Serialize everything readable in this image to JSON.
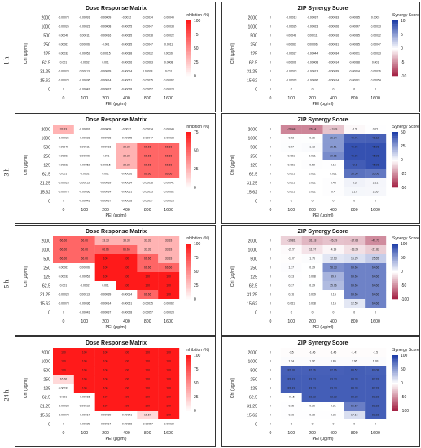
{
  "row_labels": [
    "1 h",
    "3 h",
    "5 h",
    "24 h"
  ],
  "chart_data": [
    {
      "type": "heatmap",
      "title": "Dose Response Matrix",
      "xlabel": "PEI (μg/ml)",
      "ylabel": "Chi (μg/ml)",
      "legend_title": "Inhibition (%)",
      "colorscale": [
        "#ffffff",
        "#ff1a1a"
      ],
      "zlim": [
        0,
        100
      ],
      "legend_ticks": [
        "100",
        "75",
        "50",
        "25",
        "0"
      ],
      "x": [
        "0",
        "100",
        "200",
        "400",
        "800",
        "1600"
      ],
      "y": [
        "2000",
        "1000",
        "500",
        "250",
        "125",
        "62.5",
        "31.25",
        "15.62",
        "0"
      ],
      "values": [
        [
          -0.00073,
          -0.00091,
          -9e-05,
          -0.0012,
          -0.00034,
          -0.00049
        ],
        [
          -0.00026,
          -0.00023,
          -8e-05,
          -0.00075,
          -0.00047,
          -0.00033
        ],
        [
          0.00046,
          0.00011,
          -0.00016,
          -0.00035,
          -0.00038,
          -0.00022
        ],
        [
          0.00061,
          6e-05,
          -0.001,
          -0.00035,
          -0.00047,
          0.0011
        ],
        [
          0.00032,
          -0.00052,
          0.00015,
          -0.00038,
          -0.00022,
          0.00026
        ],
        [
          0.001,
          -0.0002,
          0.001,
          -0.00026,
          -0.00063,
          0.0008
        ],
        [
          -0.00023,
          0.00013,
          -0.00039,
          -0.00014,
          0.00038,
          0.001
        ],
        [
          -0.00078,
          -0.00036,
          -0.00014,
          -0.00051,
          -0.00035,
          -0.00062
        ],
        [
          0,
          -0.00043,
          -0.00037,
          -0.00028,
          -0.00057,
          -0.00028
        ]
      ]
    },
    {
      "type": "heatmap",
      "title": "ZIP Synergy Score",
      "xlabel": "PEI (μg/ml)",
      "ylabel": "Chi (μg/ml)",
      "legend_title": "Synergy Score",
      "colorscale": [
        "#a0183c",
        "#ffffff",
        "#1f3ea8"
      ],
      "zlim": [
        -10,
        10
      ],
      "legend_ticks": [
        "10",
        "5",
        "0",
        "-5",
        "-10"
      ],
      "x": [
        "0",
        "100",
        "200",
        "400",
        "800",
        "1600"
      ],
      "y": [
        "2000",
        "1000",
        "500",
        "250",
        "125",
        "62.5",
        "31.25",
        "15.62",
        "0"
      ],
      "values": [
        [
          0,
          -0.00013,
          -0.00037,
          -0.00033,
          -0.00035,
          0.0003
        ],
        [
          0,
          -0.00025,
          -0.00023,
          -0.00026,
          -0.00047,
          -0.00033
        ],
        [
          0,
          0.00048,
          0.00011,
          -0.00016,
          -0.00035,
          -0.00022
        ],
        [
          0,
          0.00061,
          6e-05,
          -0.00031,
          -0.00035,
          -0.00047
        ],
        [
          0,
          -0.00027,
          -0.00044,
          -0.00034,
          -0.00021,
          -0.00023
        ],
        [
          0,
          6e-05,
          -8e-05,
          -0.00014,
          -0.00038,
          0.001
        ],
        [
          0,
          -0.00023,
          -0.00013,
          -0.00039,
          -0.00014,
          -0.00036
        ],
        [
          0,
          -0.00078,
          -0.00036,
          -0.00014,
          -0.00051,
          -0.00054
        ],
        [
          0,
          0,
          0,
          0,
          0,
          0
        ]
      ]
    },
    {
      "type": "heatmap",
      "title": "Dose Response Matrix",
      "xlabel": "PEI (μg/ml)",
      "ylabel": "Chi (μg/ml)",
      "legend_title": "Inhibition (%)",
      "colorscale": [
        "#ffffff",
        "#ff1a1a"
      ],
      "zlim": [
        0,
        100
      ],
      "legend_ticks": [
        "75",
        "50",
        "25",
        "0"
      ],
      "x": [
        "0",
        "100",
        "200",
        "400",
        "800",
        "1600"
      ],
      "y": [
        "2000",
        "1000",
        "500",
        "250",
        "125",
        "62.5",
        "31.25",
        "15.62",
        "0"
      ],
      "values": [
        [
          33.33,
          -0.00091,
          -9e-05,
          -0.0012,
          -0.00034,
          -0.00049
        ],
        [
          -0.00026,
          -0.00023,
          -8e-05,
          -0.00075,
          -0.00047,
          -0.00033
        ],
        [
          0.00046,
          0.00011,
          -0.00016,
          33.33,
          66.66,
          66.66
        ],
        [
          0.00061,
          6e-05,
          -0.001,
          33.33,
          66.66,
          66.66
        ],
        [
          0.00032,
          -0.00052,
          0.00015,
          33.33,
          66.66,
          66.66
        ],
        [
          0.001,
          -0.0002,
          0.001,
          -0.00026,
          66.66,
          66.66
        ],
        [
          -0.00023,
          0.00013,
          -0.00039,
          -0.00014,
          -0.00038,
          -0.00041
        ],
        [
          -0.00078,
          -0.00036,
          -0.00014,
          -0.00051,
          -0.00035,
          -0.00062
        ],
        [
          0,
          -0.00043,
          -0.00037,
          -0.00028,
          -0.00057,
          -0.00028
        ]
      ]
    },
    {
      "type": "heatmap",
      "title": "ZIP Synergy Score",
      "xlabel": "PEI (μg/ml)",
      "ylabel": "Chi (μg/ml)",
      "legend_title": "Synergy Score",
      "colorscale": [
        "#a0183c",
        "#ffffff",
        "#1f3ea8"
      ],
      "zlim": [
        -50,
        50
      ],
      "legend_ticks": [
        "50",
        "25",
        "0",
        "-25",
        "-50"
      ],
      "x": [
        "0",
        "100",
        "200",
        "400",
        "800",
        "1600"
      ],
      "y": [
        "2000",
        "1000",
        "500",
        "250",
        "125",
        "62.5",
        "31.25",
        "15.62",
        "0"
      ],
      "values": [
        [
          0,
          -26.44,
          -26.44,
          -13.09,
          -1.5,
          0.21
        ],
        [
          0,
          0.53,
          0.36,
          26.24,
          40.71,
          41.12
        ],
        [
          0,
          0.57,
          1.13,
          26.51,
          45.06,
          45.06
        ],
        [
          0,
          0.021,
          0.021,
          30.16,
          45.06,
          45.06
        ],
        [
          0,
          0.021,
          0.52,
          0.16,
          42.1,
          45.06
        ],
        [
          0,
          0.021,
          0.021,
          0.021,
          36.56,
          35.06
        ],
        [
          0,
          0.021,
          0.021,
          0.46,
          3.3,
          2.21
        ],
        [
          0,
          0.021,
          0.021,
          0.4,
          2.17,
          2.05
        ],
        [
          0,
          0,
          0,
          0,
          0,
          0
        ]
      ]
    },
    {
      "type": "heatmap",
      "title": "Dose Response Matrix",
      "xlabel": "PEI (μg/ml)",
      "ylabel": "Chi (μg/ml)",
      "legend_title": "Inhibition (%)",
      "colorscale": [
        "#ffffff",
        "#ff1a1a"
      ],
      "zlim": [
        0,
        100
      ],
      "legend_ticks": [
        "100",
        "75",
        "50",
        "25",
        "0"
      ],
      "x": [
        "0",
        "100",
        "200",
        "400",
        "800",
        "1600"
      ],
      "y": [
        "2000",
        "1000",
        "500",
        "250",
        "125",
        "62.5",
        "31.25",
        "15.62",
        "0"
      ],
      "values": [
        [
          66.66,
          66.66,
          33.33,
          33.33,
          33.33,
          33.33
        ],
        [
          66.66,
          66.66,
          66.66,
          66.66,
          33.33,
          33.33
        ],
        [
          66.66,
          66.66,
          100,
          100,
          66.66,
          33.33
        ],
        [
          0.00061,
          6e-05,
          100,
          100,
          66.66,
          66.66
        ],
        [
          0.00032,
          -0.00052,
          100,
          100,
          100,
          100
        ],
        [
          0.001,
          -0.0002,
          0.001,
          100,
          100,
          100
        ],
        [
          -0.00023,
          0.00013,
          -0.00039,
          -0.00014,
          66.66,
          100
        ],
        [
          -0.00078,
          -0.00036,
          -0.00014,
          -0.00051,
          -0.00035,
          -0.00062
        ],
        [
          0,
          -0.00043,
          -0.00037,
          -0.00028,
          -0.00057,
          -0.00028
        ]
      ]
    },
    {
      "type": "heatmap",
      "title": "ZIP Synergy Score",
      "xlabel": "PEI (μg/ml)",
      "ylabel": "Chi (μg/ml)",
      "legend_title": "Synergy Score",
      "colorscale": [
        "#a0183c",
        "#ffffff",
        "#1f3ea8"
      ],
      "zlim": [
        -100,
        100
      ],
      "legend_ticks": [
        "100",
        "50",
        "0",
        "-50",
        "-100"
      ],
      "x": [
        "0",
        "100",
        "200",
        "400",
        "800",
        "1600"
      ],
      "y": [
        "2000",
        "1000",
        "500",
        "250",
        "125",
        "62.5",
        "31.25",
        "15.62",
        "0"
      ],
      "values": [
        [
          0,
          -19.81,
          -31.18,
          -26.29,
          -27.68,
          -49.71
        ],
        [
          0,
          -2.27,
          -11.97,
          -4.19,
          -13.29,
          -21.82
        ],
        [
          0,
          -1.07,
          1.76,
          12.93,
          16.29,
          25.65
        ],
        [
          0,
          1.37,
          0.24,
          58.33,
          64.66,
          64.66
        ],
        [
          0,
          0.33,
          0.008,
          39.4,
          64.66,
          64.66
        ],
        [
          0,
          0.37,
          0.24,
          35.06,
          64.66,
          64.66
        ],
        [
          0,
          0.16,
          0.019,
          0.15,
          64.66,
          64.66
        ],
        [
          0,
          0.061,
          0.018,
          0.15,
          12.59,
          64.66
        ],
        [
          0,
          0,
          0,
          0,
          0,
          0
        ]
      ]
    },
    {
      "type": "heatmap",
      "title": "Dose Response Matrix",
      "xlabel": "PEI (μg/ml)",
      "ylabel": "Chi (μg/ml)",
      "legend_title": "Inhibition (%)",
      "colorscale": [
        "#ffffff",
        "#ff1a1a"
      ],
      "zlim": [
        0,
        100
      ],
      "legend_ticks": [
        "100",
        "75",
        "50",
        "25",
        "0"
      ],
      "x": [
        "0",
        "100",
        "200",
        "400",
        "800",
        "1600"
      ],
      "y": [
        "2000",
        "1000",
        "500",
        "250",
        "125",
        "62.5",
        "31.25",
        "15.62",
        "0"
      ],
      "values": [
        [
          100,
          100,
          100,
          100,
          100,
          100
        ],
        [
          100,
          100,
          100,
          100,
          100,
          100
        ],
        [
          100,
          100,
          100,
          100,
          100,
          100
        ],
        [
          16.66,
          100,
          100,
          100,
          100,
          100
        ],
        [
          0.00032,
          100,
          100,
          100,
          100,
          100
        ],
        [
          0.001,
          -0.00015,
          100,
          100,
          100,
          100
        ],
        [
          -0.00023,
          0.00013,
          100,
          100,
          100,
          100
        ],
        [
          -0.00078,
          -0.00017,
          -0.00039,
          -0.00041,
          16.67,
          100
        ],
        [
          0,
          -0.00029,
          -0.00034,
          -0.00028,
          -0.00057,
          -0.00034
        ]
      ]
    },
    {
      "type": "heatmap",
      "title": "ZIP Synergy Score",
      "xlabel": "PEI (μg/ml)",
      "ylabel": "Chi (μg/ml)",
      "legend_title": "Synergy Score",
      "colorscale": [
        "#a0183c",
        "#ffffff",
        "#1f3ea8"
      ],
      "zlim": [
        -100,
        100
      ],
      "legend_ticks": [
        "100",
        "50",
        "0",
        "-50",
        "-100"
      ],
      "x": [
        "0",
        "100",
        "200",
        "400",
        "800",
        "1600"
      ],
      "y": [
        "2000",
        "1000",
        "500",
        "250",
        "125",
        "62.5",
        "31.25",
        "15.62",
        "0"
      ],
      "values": [
        [
          0,
          -1.5,
          -1.46,
          -1.45,
          -1.47,
          -1.5
        ],
        [
          0,
          1.94,
          1.97,
          1.86,
          1.96,
          1.93
        ],
        [
          0,
          82.16,
          82.16,
          82.16,
          83.57,
          82.08
        ],
        [
          0,
          83.33,
          83.33,
          83.33,
          83.33,
          83.33
        ],
        [
          0,
          83.33,
          83.33,
          83.33,
          83.33,
          83.33
        ],
        [
          0,
          -0.15,
          83.33,
          83.33,
          83.33,
          83.33
        ],
        [
          0,
          0.35,
          0.25,
          0.21,
          66.67,
          83.33
        ],
        [
          0,
          0.36,
          0.33,
          0.35,
          17.16,
          83.33
        ],
        [
          0,
          0,
          0,
          0,
          0,
          0
        ]
      ]
    }
  ]
}
